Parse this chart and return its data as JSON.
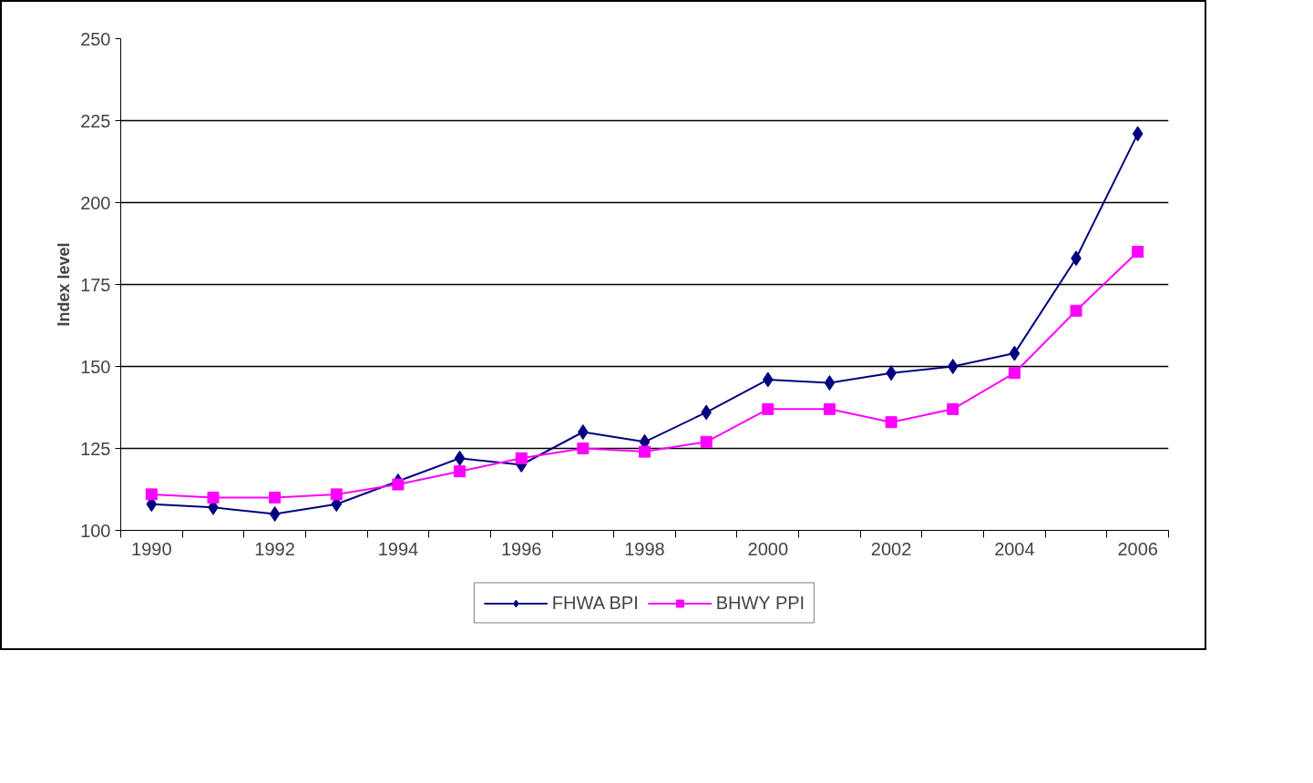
{
  "chart_data": {
    "type": "line",
    "ylabel": "Index level",
    "categories": [
      "1990",
      null,
      "1992",
      null,
      "1994",
      null,
      "1996",
      null,
      "1998",
      null,
      "2000",
      null,
      "2002",
      null,
      "2004",
      null,
      "2006"
    ],
    "series": [
      {
        "name": "FHWA BPI",
        "color": "#000080",
        "marker": "diamond",
        "values": [
          108,
          107,
          105,
          108,
          115,
          122,
          120,
          130,
          127,
          136,
          146,
          145,
          148,
          150,
          154,
          183,
          221
        ]
      },
      {
        "name": "BHWY PPI",
        "color": "#ff00ff",
        "marker": "square",
        "values": [
          111,
          110,
          110,
          111,
          114,
          118,
          122,
          125,
          124,
          127,
          137,
          137,
          133,
          137,
          148,
          167,
          185
        ]
      }
    ],
    "ylim": [
      100,
      250
    ],
    "yticks": [
      100,
      125,
      150,
      175,
      200,
      225,
      250
    ],
    "grid": "y",
    "legend": "bottom",
    "line_style": "solid"
  }
}
